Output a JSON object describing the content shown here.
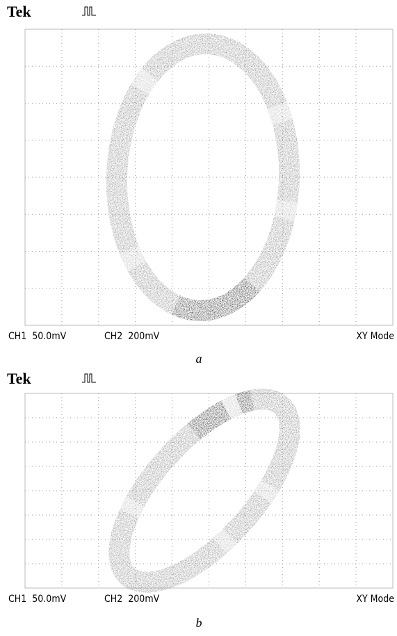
{
  "panels": [
    {
      "brand": "Tek",
      "ch1": "CH1  50.0mV",
      "ch2": "CH2  200mV",
      "mode": "XY Mode",
      "caption": "a"
    },
    {
      "brand": "Tek",
      "ch1": "CH1  50.0mV",
      "ch2": "CH2  200mV",
      "mode": "XY Mode",
      "caption": "b"
    }
  ]
}
